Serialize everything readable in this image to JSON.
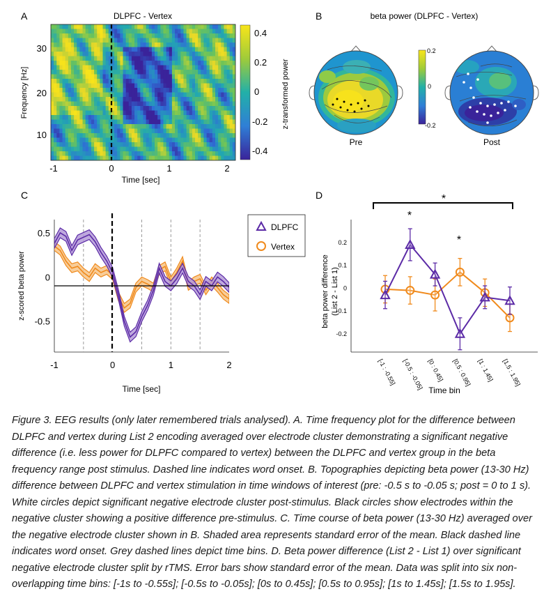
{
  "panel_a": {
    "letter": "A",
    "title": "DLPFC - Vertex",
    "ylabel": "Frequency [Hz]",
    "xlabel": "Time [sec]",
    "colorbar_label": "z-transformed power",
    "colors": {
      "low": "#3b2a98",
      "mid": "#1fa8b0",
      "high": "#f5e11f"
    }
  },
  "panel_b": {
    "letter": "B",
    "title": "beta power (DLPFC - Vertex)",
    "colorbar_ticks": [
      "0.2",
      "0",
      "-0.2"
    ],
    "label_pre": "Pre",
    "label_post": "Post"
  },
  "panel_c": {
    "letter": "C",
    "ylabel": "z-scored beta power",
    "xlabel": "Time [sec]",
    "legend": [
      {
        "label": "DLPFC",
        "color": "#5b2aa6"
      },
      {
        "label": "Vertex",
        "color": "#f08a1c"
      }
    ]
  },
  "panel_d": {
    "letter": "D",
    "ylabel_line1": "beta power difference",
    "ylabel_line2": "(List 2 - List 1)",
    "xlabel": "Time bin",
    "star": "*"
  },
  "chart_data": [
    {
      "type": "heatmap",
      "panel": "A",
      "title": "DLPFC - Vertex",
      "xlabel": "Time [sec]",
      "ylabel": "Frequency [Hz]",
      "xlim": [
        -1.1,
        2.1
      ],
      "ylim": [
        4,
        35
      ],
      "xticks": [
        -1,
        0,
        1,
        2
      ],
      "yticks": [
        10,
        20,
        30
      ],
      "colorbar": {
        "label": "z-transformed power",
        "ticks": [
          0.4,
          0.2,
          0,
          -0.2,
          -0.4
        ],
        "range": [
          -0.5,
          0.5
        ]
      },
      "annotations": [
        "Dashed line at 0 s indicates word onset"
      ]
    },
    {
      "type": "line",
      "panel": "C",
      "xlabel": "Time [sec]",
      "ylabel": "z-scored beta power",
      "xlim": [
        -1,
        2
      ],
      "ylim": [
        -0.85,
        0.65
      ],
      "xticks": [
        -1,
        0,
        1,
        2
      ],
      "yticks": [
        -0.5,
        0,
        0.5
      ],
      "bin_edges": [
        -0.5,
        0.5,
        1,
        1.5
      ],
      "x": [
        -1.0,
        -0.9,
        -0.8,
        -0.7,
        -0.6,
        -0.5,
        -0.4,
        -0.3,
        -0.2,
        -0.1,
        0.0,
        0.1,
        0.2,
        0.3,
        0.4,
        0.5,
        0.6,
        0.7,
        0.8,
        0.9,
        1.0,
        1.1,
        1.2,
        1.3,
        1.4,
        1.5,
        1.6,
        1.7,
        1.8,
        1.9,
        2.0
      ],
      "series": [
        {
          "name": "DLPFC",
          "values": [
            0.38,
            0.5,
            0.46,
            0.3,
            0.42,
            0.45,
            0.48,
            0.4,
            0.28,
            0.18,
            0.05,
            -0.2,
            -0.5,
            -0.68,
            -0.62,
            -0.45,
            -0.32,
            -0.15,
            0.1,
            -0.05,
            -0.1,
            -0.02,
            0.1,
            -0.05,
            -0.1,
            -0.2,
            -0.05,
            -0.1,
            0.0,
            -0.05,
            -0.12
          ]
        },
        {
          "name": "Vertex",
          "values": [
            0.35,
            0.3,
            0.18,
            0.1,
            0.12,
            0.05,
            0.0,
            0.1,
            0.05,
            0.08,
            0.02,
            -0.22,
            -0.35,
            -0.3,
            -0.12,
            -0.05,
            -0.08,
            -0.12,
            0.08,
            0.12,
            -0.05,
            0.05,
            0.18,
            -0.1,
            -0.05,
            -0.02,
            -0.15,
            -0.05,
            -0.12,
            -0.2,
            -0.25
          ]
        }
      ]
    },
    {
      "type": "line",
      "panel": "D",
      "xlabel": "Time bin",
      "ylabel": "beta power difference (List 2 - List 1)",
      "ylim": [
        -0.28,
        0.3
      ],
      "yticks": [
        0.2,
        0.1,
        0,
        -0.1,
        -0.2
      ],
      "categories": [
        "[-1 : -0.55]",
        "[-0.5 : -0.05]",
        "[0 : 0.45]",
        "[0.5 : 0.95]",
        "[1 : 1.45]",
        "[1.5 : 1.95]"
      ],
      "series": [
        {
          "name": "DLPFC",
          "values": [
            -0.03,
            0.19,
            0.06,
            -0.2,
            -0.04,
            -0.055
          ],
          "error": [
            0.06,
            0.07,
            0.05,
            0.07,
            0.05,
            0.06
          ]
        },
        {
          "name": "Vertex",
          "values": [
            -0.005,
            -0.01,
            -0.03,
            0.07,
            -0.02,
            -0.13
          ],
          "error": [
            0.06,
            0.06,
            0.07,
            0.06,
            0.06,
            0.06
          ]
        }
      ],
      "significance": [
        "bin 2 (*)",
        "bin 4 (*)",
        "bracket across all bins (*)"
      ]
    }
  ],
  "caption": "Figure 3. EEG results (only later remembered trials analysed). A. Time frequency plot for the difference between DLPFC and vertex during List 2 encoding averaged over electrode cluster demonstrating a significant negative difference (i.e. less power for DLPFC compared to vertex) between the DLPFC and vertex group in the beta frequency range post stimulus. Dashed line indicates word onset. B. Topographies depicting beta power (13-30 Hz) difference between DLPFC and vertex stimulation in time windows of interest (pre: -0.5 s to -0.05 s; post = 0 to 1 s). White circles depict significant negative electrode cluster post-stimulus. Black circles show electrodes within the negative cluster showing a positive difference pre-stimulus. C. Time course of beta power (13-30 Hz) averaged over the negative electrode cluster shown in B. Shaded area represents standard error of the mean. Black dashed line indicates word onset. Grey dashed lines depict time bins. D. Beta power difference (List 2 - List 1) over significant negative electrode cluster split by rTMS. Error bars show standard error of the mean. Data was split into six non-overlapping time bins: [-1s to -0.55s]; [-0.5s to -0.05s]; [0s to 0.45s]; [0.5s to 0.95s]; [1s to 1.45s]; [1.5s to 1.95s]."
}
